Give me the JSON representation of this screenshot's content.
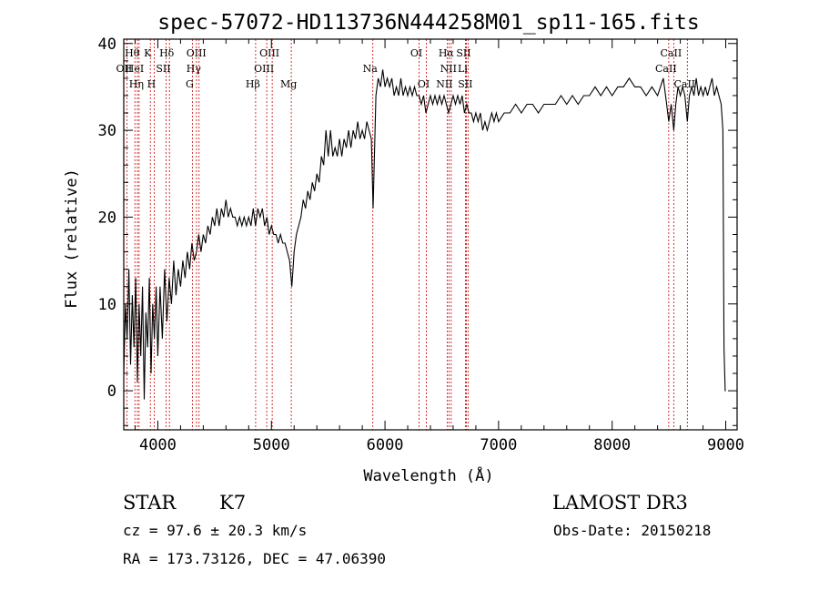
{
  "chart_data": {
    "type": "line",
    "title": "spec-57072-HD113736N444258M01_sp11-165.fits",
    "xlabel": "Wavelength (Å)",
    "ylabel": "Flux (relative)",
    "xlim": [
      3700,
      9100
    ],
    "ylim": [
      -4.5,
      40.5
    ],
    "xticks": [
      4000,
      5000,
      6000,
      7000,
      8000,
      9000
    ],
    "yticks": [
      0,
      10,
      20,
      30,
      40
    ],
    "line_color": "#000000",
    "marker_color": "#cc0000",
    "series": [
      {
        "name": "spectrum",
        "points": [
          [
            3700,
            2
          ],
          [
            3715,
            10
          ],
          [
            3730,
            6
          ],
          [
            3745,
            14
          ],
          [
            3760,
            3
          ],
          [
            3775,
            11
          ],
          [
            3790,
            5
          ],
          [
            3805,
            13
          ],
          [
            3820,
            1
          ],
          [
            3835,
            10
          ],
          [
            3850,
            4
          ],
          [
            3865,
            12
          ],
          [
            3880,
            -1
          ],
          [
            3895,
            9
          ],
          [
            3910,
            5
          ],
          [
            3925,
            13
          ],
          [
            3940,
            2
          ],
          [
            3955,
            10
          ],
          [
            3970,
            6
          ],
          [
            3985,
            12
          ],
          [
            4000,
            4
          ],
          [
            4020,
            12
          ],
          [
            4040,
            6
          ],
          [
            4060,
            14
          ],
          [
            4080,
            8
          ],
          [
            4100,
            13
          ],
          [
            4120,
            10
          ],
          [
            4140,
            15
          ],
          [
            4160,
            11
          ],
          [
            4180,
            14
          ],
          [
            4200,
            12
          ],
          [
            4220,
            15
          ],
          [
            4240,
            13
          ],
          [
            4260,
            16
          ],
          [
            4280,
            14
          ],
          [
            4300,
            17
          ],
          [
            4320,
            15
          ],
          [
            4340,
            16
          ],
          [
            4360,
            18
          ],
          [
            4380,
            16
          ],
          [
            4400,
            18
          ],
          [
            4420,
            17
          ],
          [
            4440,
            19
          ],
          [
            4460,
            18
          ],
          [
            4480,
            20
          ],
          [
            4500,
            19
          ],
          [
            4520,
            21
          ],
          [
            4540,
            19
          ],
          [
            4560,
            21
          ],
          [
            4580,
            20
          ],
          [
            4600,
            22
          ],
          [
            4620,
            20
          ],
          [
            4640,
            21
          ],
          [
            4660,
            20
          ],
          [
            4680,
            20
          ],
          [
            4700,
            19
          ],
          [
            4720,
            20
          ],
          [
            4740,
            19
          ],
          [
            4760,
            20
          ],
          [
            4780,
            19
          ],
          [
            4800,
            20
          ],
          [
            4820,
            19
          ],
          [
            4840,
            21
          ],
          [
            4860,
            19
          ],
          [
            4880,
            21
          ],
          [
            4900,
            20
          ],
          [
            4920,
            21
          ],
          [
            4940,
            19
          ],
          [
            4960,
            20
          ],
          [
            4980,
            18
          ],
          [
            5000,
            19
          ],
          [
            5020,
            18
          ],
          [
            5040,
            18
          ],
          [
            5060,
            17
          ],
          [
            5080,
            18
          ],
          [
            5100,
            17
          ],
          [
            5120,
            17
          ],
          [
            5140,
            16
          ],
          [
            5160,
            15
          ],
          [
            5180,
            12
          ],
          [
            5190,
            14
          ],
          [
            5200,
            16
          ],
          [
            5220,
            18
          ],
          [
            5240,
            19
          ],
          [
            5260,
            20
          ],
          [
            5280,
            22
          ],
          [
            5300,
            21
          ],
          [
            5320,
            23
          ],
          [
            5340,
            22
          ],
          [
            5360,
            24
          ],
          [
            5380,
            23
          ],
          [
            5400,
            25
          ],
          [
            5420,
            24
          ],
          [
            5440,
            27
          ],
          [
            5460,
            26
          ],
          [
            5480,
            30
          ],
          [
            5500,
            27
          ],
          [
            5520,
            30
          ],
          [
            5540,
            27
          ],
          [
            5560,
            28
          ],
          [
            5580,
            27
          ],
          [
            5600,
            29
          ],
          [
            5620,
            27
          ],
          [
            5640,
            29
          ],
          [
            5660,
            28
          ],
          [
            5680,
            30
          ],
          [
            5700,
            28
          ],
          [
            5720,
            30
          ],
          [
            5740,
            29
          ],
          [
            5760,
            31
          ],
          [
            5780,
            29
          ],
          [
            5800,
            30
          ],
          [
            5820,
            29
          ],
          [
            5840,
            31
          ],
          [
            5860,
            30
          ],
          [
            5880,
            29
          ],
          [
            5895,
            21
          ],
          [
            5905,
            26
          ],
          [
            5920,
            34
          ],
          [
            5940,
            36
          ],
          [
            5960,
            35
          ],
          [
            5980,
            37
          ],
          [
            6000,
            35
          ],
          [
            6020,
            36
          ],
          [
            6040,
            35
          ],
          [
            6060,
            36
          ],
          [
            6080,
            34
          ],
          [
            6100,
            35
          ],
          [
            6120,
            34
          ],
          [
            6140,
            36
          ],
          [
            6160,
            34
          ],
          [
            6180,
            35
          ],
          [
            6200,
            34
          ],
          [
            6220,
            35
          ],
          [
            6240,
            34
          ],
          [
            6260,
            35
          ],
          [
            6280,
            34
          ],
          [
            6300,
            34
          ],
          [
            6320,
            33
          ],
          [
            6340,
            34
          ],
          [
            6360,
            32
          ],
          [
            6380,
            33
          ],
          [
            6400,
            34
          ],
          [
            6420,
            33
          ],
          [
            6440,
            34
          ],
          [
            6460,
            33
          ],
          [
            6480,
            34
          ],
          [
            6500,
            33
          ],
          [
            6520,
            34
          ],
          [
            6540,
            33
          ],
          [
            6560,
            32
          ],
          [
            6580,
            33
          ],
          [
            6600,
            34
          ],
          [
            6620,
            33
          ],
          [
            6640,
            34
          ],
          [
            6660,
            33
          ],
          [
            6680,
            34
          ],
          [
            6700,
            32
          ],
          [
            6720,
            33
          ],
          [
            6740,
            32
          ],
          [
            6760,
            32
          ],
          [
            6780,
            31
          ],
          [
            6800,
            32
          ],
          [
            6820,
            31
          ],
          [
            6840,
            32
          ],
          [
            6860,
            30
          ],
          [
            6880,
            31
          ],
          [
            6900,
            30
          ],
          [
            6920,
            31
          ],
          [
            6940,
            32
          ],
          [
            6960,
            31
          ],
          [
            6980,
            32
          ],
          [
            7000,
            31
          ],
          [
            7050,
            32
          ],
          [
            7100,
            32
          ],
          [
            7150,
            33
          ],
          [
            7200,
            32
          ],
          [
            7250,
            33
          ],
          [
            7300,
            33
          ],
          [
            7350,
            32
          ],
          [
            7400,
            33
          ],
          [
            7450,
            33
          ],
          [
            7500,
            33
          ],
          [
            7550,
            34
          ],
          [
            7600,
            33
          ],
          [
            7650,
            34
          ],
          [
            7700,
            33
          ],
          [
            7750,
            34
          ],
          [
            7800,
            34
          ],
          [
            7850,
            35
          ],
          [
            7900,
            34
          ],
          [
            7950,
            35
          ],
          [
            8000,
            34
          ],
          [
            8050,
            35
          ],
          [
            8100,
            35
          ],
          [
            8150,
            36
          ],
          [
            8200,
            35
          ],
          [
            8250,
            35
          ],
          [
            8300,
            34
          ],
          [
            8350,
            35
          ],
          [
            8400,
            34
          ],
          [
            8450,
            36
          ],
          [
            8480,
            33
          ],
          [
            8498,
            31
          ],
          [
            8520,
            33
          ],
          [
            8542,
            30
          ],
          [
            8560,
            33
          ],
          [
            8580,
            35
          ],
          [
            8600,
            34
          ],
          [
            8620,
            35
          ],
          [
            8640,
            34
          ],
          [
            8662,
            31
          ],
          [
            8680,
            34
          ],
          [
            8700,
            35
          ],
          [
            8720,
            34
          ],
          [
            8740,
            36
          ],
          [
            8760,
            34
          ],
          [
            8780,
            35
          ],
          [
            8800,
            34
          ],
          [
            8820,
            35
          ],
          [
            8840,
            34
          ],
          [
            8860,
            35
          ],
          [
            8880,
            36
          ],
          [
            8900,
            34
          ],
          [
            8920,
            35
          ],
          [
            8940,
            34
          ],
          [
            8960,
            33
          ],
          [
            8975,
            30
          ],
          [
            8985,
            5
          ],
          [
            8995,
            0
          ],
          [
            9000,
            0
          ]
        ]
      }
    ],
    "line_markers": [
      {
        "name": "O II",
        "wavelength": 3727,
        "label": "OII",
        "row": 2
      },
      {
        "name": "H theta",
        "wavelength": 3798,
        "label": "Hθ",
        "row": 1
      },
      {
        "name": "He I",
        "wavelength": 3820,
        "label": "HeI",
        "row": 2
      },
      {
        "name": "H eta",
        "wavelength": 3835,
        "label": "Hη",
        "row": 3
      },
      {
        "name": "K",
        "wavelength": 3934,
        "label": "K",
        "row": 1
      },
      {
        "name": "H",
        "wavelength": 3968,
        "label": "H",
        "row": 3
      },
      {
        "name": "S II",
        "wavelength": 4072,
        "label": "SII",
        "row": 2
      },
      {
        "name": "H delta",
        "wavelength": 4102,
        "label": "Hδ",
        "row": 1
      },
      {
        "name": "G",
        "wavelength": 4304,
        "label": "G",
        "row": 3
      },
      {
        "name": "H gamma",
        "wavelength": 4340,
        "label": "Hγ",
        "row": 2
      },
      {
        "name": "O III",
        "wavelength": 4363,
        "label": "OIII",
        "row": 1
      },
      {
        "name": "H beta",
        "wavelength": 4861,
        "label": "Hβ",
        "row": 3
      },
      {
        "name": "O III",
        "wavelength": 4959,
        "label": "OIII",
        "row": 2
      },
      {
        "name": "O III",
        "wavelength": 5007,
        "label": "OIII",
        "row": 1
      },
      {
        "name": "Mg",
        "wavelength": 5175,
        "label": "Mg",
        "row": 3
      },
      {
        "name": "Na",
        "wavelength": 5893,
        "label": "Na",
        "row": 2
      },
      {
        "name": "O I",
        "wavelength": 6300,
        "label": "OI",
        "row": 1
      },
      {
        "name": "O I",
        "wavelength": 6364,
        "label": "OI",
        "row": 3
      },
      {
        "name": "N II",
        "wavelength": 6548,
        "label": "NII",
        "row": 3
      },
      {
        "name": "H alpha",
        "wavelength": 6563,
        "label": "Hα",
        "row": 1
      },
      {
        "name": "N II",
        "wavelength": 6583,
        "label": "NII",
        "row": 2
      },
      {
        "name": "Li",
        "wavelength": 6708,
        "label": "Li",
        "row": 2
      },
      {
        "name": "S II",
        "wavelength": 6716,
        "label": "SII",
        "row": 1
      },
      {
        "name": "S II",
        "wavelength": 6731,
        "label": "SII",
        "row": 3
      },
      {
        "name": "Ca II",
        "wavelength": 8498,
        "label": "CaII",
        "row": 2
      },
      {
        "name": "Ca II",
        "wavelength": 8542,
        "label": "CaII",
        "row": 1
      },
      {
        "name": "Ca II",
        "wavelength": 8662,
        "label": "CaII",
        "row": 3
      }
    ]
  },
  "info": {
    "object_class": "STAR",
    "subclass": "K7",
    "survey": "LAMOST DR3",
    "velocity": "cz = 97.6 ± 20.3 km/s",
    "obs_date": "Obs-Date: 20150218",
    "coords": "RA = 173.73126, DEC =  47.06390"
  }
}
